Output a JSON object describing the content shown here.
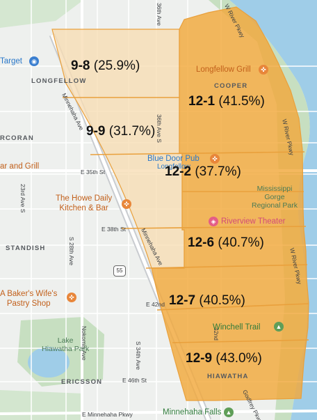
{
  "colors": {
    "base": "#eef0ee",
    "water": "#9fcde8",
    "park": "#c7dfc1",
    "light_tint": "#f7dcb4",
    "heavy_tint": "#f2a83c",
    "border": "#e9a03c",
    "road_major": "#ffffff",
    "road_minor": "#dcdcdc"
  },
  "neighborhoods": {
    "longfellow": "LONGFELLOW",
    "cooper": "COOPER",
    "corcoran": "RCORAN",
    "standish": "STANDISH",
    "ericsson": "ERICSSON",
    "hiawatha": "HIAWATHA"
  },
  "places": {
    "target": "Target",
    "longfellow_grill": "Longfellow Grill",
    "blue_door": "Blue Door Pub",
    "blue_door_sub": "Longfellow",
    "bar_grill": "ar and Grill",
    "howe": [
      "The Howe Daily",
      "Kitchen & Bar"
    ],
    "riverview": "Riverview Theater",
    "baker": [
      "A Baker's Wife's",
      "Pastry Shop"
    ],
    "winchell": "Winchell Trail",
    "minnehaha_falls": "Minnehaha Falls"
  },
  "parks": {
    "mississippi": [
      "Mississippi",
      "Gorge",
      "Regional Park"
    ],
    "lake_hiawatha": [
      "Lake",
      "Hiawatha Park"
    ]
  },
  "streets": {
    "ave36": "36th Ave",
    "river_pkwy_top": "W River Pkwy",
    "river_pkwy_mid": "W River Pkwy",
    "river_pkwy_low": "W River Pkwy",
    "minnehaha_ave_top": "Minnehaha Ave",
    "minnehaha_ave_low": "Minnehaha Ave",
    "s36": "36th Ave S",
    "e35": "E 35th St",
    "e38": "E 38th St",
    "ave23": "23rd Ave S",
    "s28": "S 28th Ave",
    "nokomis": "Nokomis Ave",
    "s34": "S 34th Ave",
    "e42": "E 42nd",
    "e46": "E 46th St",
    "e_minnehaha": "E Minnehaha Pkwy",
    "ave42": "42nd",
    "hwy55": "55",
    "godfrey": "Godfrey Pkwy"
  },
  "precincts": [
    {
      "id": "9-8",
      "pct": "(25.9%)"
    },
    {
      "id": "9-9",
      "pct": "(31.7%)"
    },
    {
      "id": "12-1",
      "pct": "(41.5%)"
    },
    {
      "id": "12-2",
      "pct": "(37.7%)"
    },
    {
      "id": "12-6",
      "pct": "(40.7%)"
    },
    {
      "id": "12-7",
      "pct": "(40.5%)"
    },
    {
      "id": "12-9",
      "pct": "(43.0%)"
    }
  ]
}
